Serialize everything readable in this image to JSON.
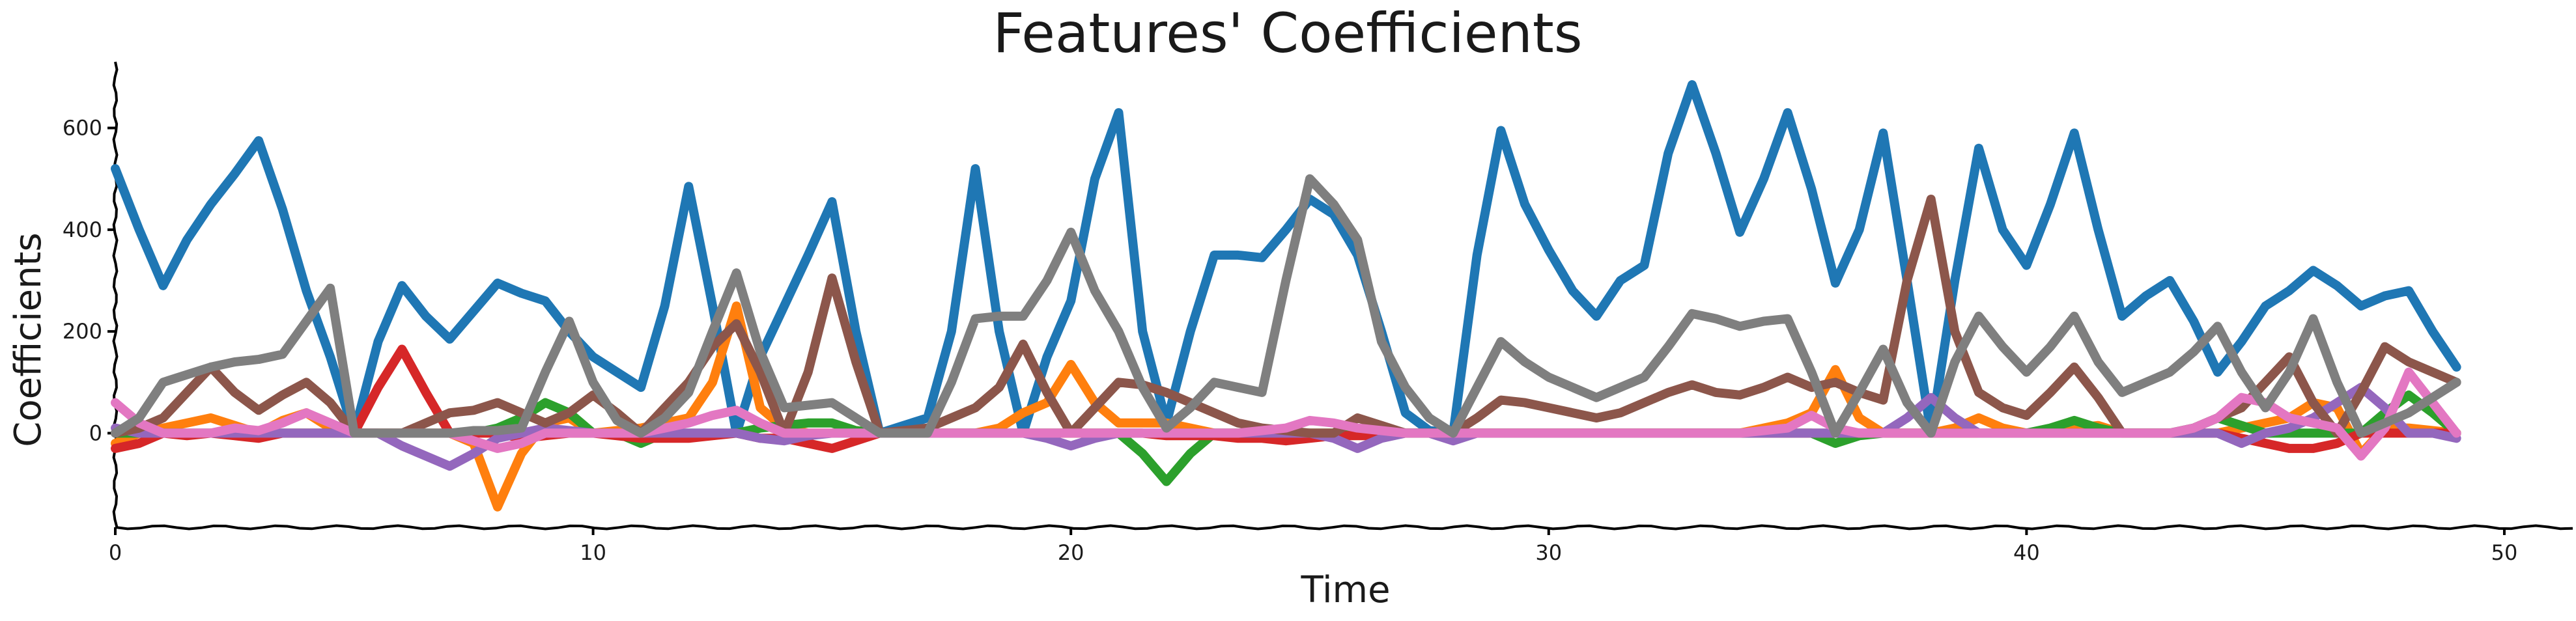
{
  "chart_data": {
    "type": "line",
    "title": "Features' Coefficients",
    "xlabel": "Time",
    "ylabel": "Coefficients",
    "xlim": [
      0,
      51.5
    ],
    "ylim": [
      -185,
      730
    ],
    "xticks": [
      0,
      10,
      20,
      30,
      40,
      50
    ],
    "yticks": [
      0,
      200,
      400,
      600
    ],
    "grid": false,
    "legend": "none",
    "x": [
      0,
      0.5,
      1,
      1.5,
      2,
      2.5,
      3,
      3.5,
      4,
      4.5,
      5,
      5.5,
      6,
      6.5,
      7,
      7.5,
      8,
      8.5,
      9,
      9.5,
      10,
      10.5,
      11,
      11.5,
      12,
      12.5,
      13,
      13.5,
      14,
      14.5,
      15,
      15.5,
      16,
      16.5,
      17,
      17.5,
      18,
      18.5,
      19,
      19.5,
      20,
      20.5,
      21,
      21.5,
      22,
      22.5,
      23,
      23.5,
      24,
      24.5,
      25,
      25.5,
      26,
      26.5,
      27,
      27.5,
      28,
      28.5,
      29,
      29.5,
      30,
      30.5,
      31,
      31.5,
      32,
      32.5,
      33,
      33.5,
      34,
      34.5,
      35,
      35.5,
      36,
      36.5,
      37,
      37.5,
      38,
      38.5,
      39,
      39.5,
      40,
      40.5,
      41,
      41.5,
      42,
      42.5,
      43,
      43.5,
      44,
      44.5,
      45,
      45.5,
      46,
      46.5,
      47,
      47.5,
      48,
      48.5,
      49
    ],
    "series": [
      {
        "color": "#1f77b4",
        "values": [
          520,
          400,
          290,
          380,
          450,
          510,
          575,
          440,
          280,
          150,
          0,
          180,
          290,
          230,
          185,
          240,
          295,
          275,
          260,
          200,
          150,
          120,
          90,
          250,
          485,
          250,
          0,
          150,
          250,
          350,
          455,
          200,
          0,
          15,
          30,
          200,
          520,
          200,
          0,
          150,
          260,
          500,
          630,
          200,
          20,
          200,
          350,
          350,
          345,
          400,
          460,
          430,
          350,
          200,
          40,
          5,
          0,
          350,
          595,
          450,
          360,
          280,
          230,
          300,
          330,
          550,
          685,
          550,
          395,
          500,
          630,
          480,
          295,
          400,
          590,
          300,
          0,
          300,
          560,
          400,
          330,
          450,
          590,
          400,
          230,
          270,
          300,
          220,
          120,
          180,
          250,
          280,
          320,
          290,
          250,
          270,
          280,
          200,
          130
        ]
      },
      {
        "color": "#ff7f0e",
        "values": [
          -20,
          0,
          10,
          20,
          30,
          15,
          0,
          25,
          40,
          10,
          0,
          0,
          0,
          0,
          0,
          -20,
          -145,
          -40,
          20,
          30,
          0,
          5,
          10,
          20,
          30,
          100,
          250,
          50,
          10,
          0,
          0,
          5,
          0,
          0,
          0,
          0,
          0,
          10,
          40,
          60,
          135,
          60,
          20,
          20,
          20,
          10,
          0,
          0,
          0,
          0,
          0,
          0,
          0,
          0,
          0,
          0,
          0,
          0,
          0,
          0,
          0,
          0,
          0,
          0,
          0,
          0,
          0,
          0,
          0,
          10,
          20,
          40,
          125,
          30,
          0,
          0,
          0,
          10,
          30,
          10,
          0,
          0,
          10,
          15,
          0,
          0,
          0,
          0,
          0,
          10,
          20,
          30,
          60,
          50,
          -40,
          10,
          10,
          5,
          0
        ]
      },
      {
        "color": "#2ca02c",
        "values": [
          0,
          0,
          0,
          0,
          0,
          0,
          0,
          0,
          0,
          0,
          0,
          0,
          0,
          0,
          0,
          0,
          10,
          30,
          60,
          40,
          0,
          0,
          -20,
          0,
          0,
          0,
          0,
          10,
          15,
          20,
          20,
          5,
          0,
          0,
          0,
          0,
          0,
          0,
          0,
          0,
          0,
          0,
          0,
          -40,
          -95,
          -40,
          0,
          0,
          0,
          0,
          0,
          0,
          0,
          0,
          0,
          0,
          0,
          0,
          0,
          0,
          0,
          0,
          0,
          0,
          0,
          0,
          0,
          0,
          0,
          0,
          0,
          0,
          -20,
          -5,
          0,
          0,
          0,
          0,
          0,
          0,
          0,
          10,
          25,
          10,
          0,
          0,
          0,
          10,
          30,
          15,
          0,
          0,
          0,
          0,
          0,
          40,
          75,
          40,
          0
        ]
      },
      {
        "color": "#d62728",
        "values": [
          -30,
          -20,
          0,
          -5,
          0,
          -5,
          -10,
          0,
          0,
          0,
          0,
          90,
          165,
          80,
          0,
          0,
          0,
          -10,
          -5,
          0,
          0,
          -5,
          -10,
          -10,
          -10,
          -5,
          0,
          -10,
          -10,
          -20,
          -30,
          -15,
          0,
          0,
          0,
          0,
          0,
          0,
          0,
          0,
          0,
          0,
          0,
          0,
          -5,
          -5,
          -5,
          -10,
          -10,
          -15,
          -10,
          -5,
          -5,
          -5,
          0,
          0,
          0,
          0,
          0,
          0,
          0,
          0,
          0,
          0,
          0,
          0,
          0,
          0,
          0,
          0,
          0,
          0,
          0,
          0,
          0,
          0,
          0,
          0,
          0,
          0,
          0,
          0,
          0,
          0,
          0,
          0,
          0,
          0,
          0,
          -10,
          -20,
          -30,
          -30,
          -20,
          0,
          0,
          0,
          0,
          0
        ]
      },
      {
        "color": "#9467bd",
        "values": [
          10,
          0,
          0,
          0,
          0,
          0,
          0,
          0,
          0,
          0,
          0,
          0,
          -25,
          -45,
          -65,
          -40,
          -10,
          0,
          10,
          5,
          0,
          0,
          0,
          0,
          0,
          0,
          0,
          -10,
          -15,
          -5,
          0,
          0,
          0,
          0,
          0,
          0,
          0,
          0,
          0,
          -10,
          -25,
          -10,
          0,
          0,
          0,
          0,
          0,
          0,
          0,
          0,
          0,
          -10,
          -30,
          -10,
          0,
          0,
          -15,
          0,
          0,
          0,
          0,
          0,
          0,
          0,
          0,
          0,
          0,
          0,
          0,
          0,
          0,
          0,
          0,
          0,
          0,
          30,
          70,
          30,
          0,
          0,
          0,
          0,
          0,
          0,
          0,
          0,
          0,
          0,
          0,
          -20,
          0,
          10,
          30,
          60,
          90,
          50,
          0,
          0,
          -10
        ]
      },
      {
        "color": "#8c564b",
        "values": [
          0,
          10,
          30,
          80,
          130,
          80,
          45,
          75,
          100,
          60,
          0,
          0,
          0,
          20,
          40,
          45,
          60,
          40,
          20,
          40,
          75,
          40,
          0,
          50,
          100,
          170,
          215,
          120,
          0,
          120,
          305,
          140,
          0,
          5,
          10,
          30,
          50,
          90,
          175,
          80,
          0,
          50,
          100,
          95,
          80,
          60,
          40,
          20,
          10,
          5,
          0,
          0,
          30,
          15,
          0,
          0,
          0,
          30,
          65,
          60,
          50,
          40,
          30,
          40,
          60,
          80,
          95,
          80,
          75,
          90,
          110,
          90,
          100,
          80,
          65,
          300,
          460,
          200,
          80,
          50,
          35,
          80,
          130,
          70,
          0,
          0,
          0,
          10,
          30,
          50,
          100,
          150,
          60,
          0,
          80,
          170,
          140,
          120,
          100
        ]
      },
      {
        "color": "#e377c2",
        "values": [
          60,
          20,
          0,
          0,
          0,
          10,
          5,
          20,
          40,
          20,
          0,
          0,
          0,
          0,
          0,
          -15,
          -30,
          -20,
          0,
          0,
          0,
          0,
          0,
          10,
          20,
          35,
          45,
          20,
          0,
          0,
          0,
          0,
          0,
          0,
          0,
          0,
          0,
          0,
          0,
          0,
          0,
          0,
          0,
          0,
          0,
          0,
          0,
          0,
          5,
          10,
          25,
          20,
          10,
          5,
          0,
          0,
          0,
          0,
          0,
          0,
          0,
          0,
          0,
          0,
          0,
          0,
          0,
          0,
          0,
          5,
          10,
          35,
          10,
          0,
          0,
          0,
          0,
          0,
          0,
          0,
          0,
          0,
          0,
          0,
          0,
          0,
          0,
          10,
          30,
          70,
          60,
          30,
          20,
          10,
          -45,
          10,
          120,
          60,
          0
        ]
      },
      {
        "color": "#7f7f7f",
        "values": [
          0,
          30,
          100,
          115,
          130,
          140,
          145,
          155,
          220,
          285,
          0,
          0,
          0,
          0,
          0,
          5,
          5,
          10,
          120,
          220,
          100,
          25,
          0,
          30,
          80,
          200,
          315,
          160,
          50,
          55,
          60,
          30,
          0,
          0,
          0,
          100,
          225,
          230,
          230,
          300,
          395,
          280,
          200,
          90,
          10,
          50,
          100,
          90,
          80,
          300,
          500,
          450,
          380,
          180,
          90,
          30,
          0,
          90,
          180,
          140,
          110,
          90,
          70,
          90,
          110,
          170,
          235,
          225,
          210,
          220,
          225,
          120,
          0,
          80,
          165,
          60,
          0,
          140,
          230,
          170,
          120,
          170,
          230,
          140,
          80,
          100,
          120,
          160,
          210,
          120,
          50,
          120,
          225,
          100,
          0,
          20,
          40,
          70,
          100
        ]
      }
    ]
  }
}
